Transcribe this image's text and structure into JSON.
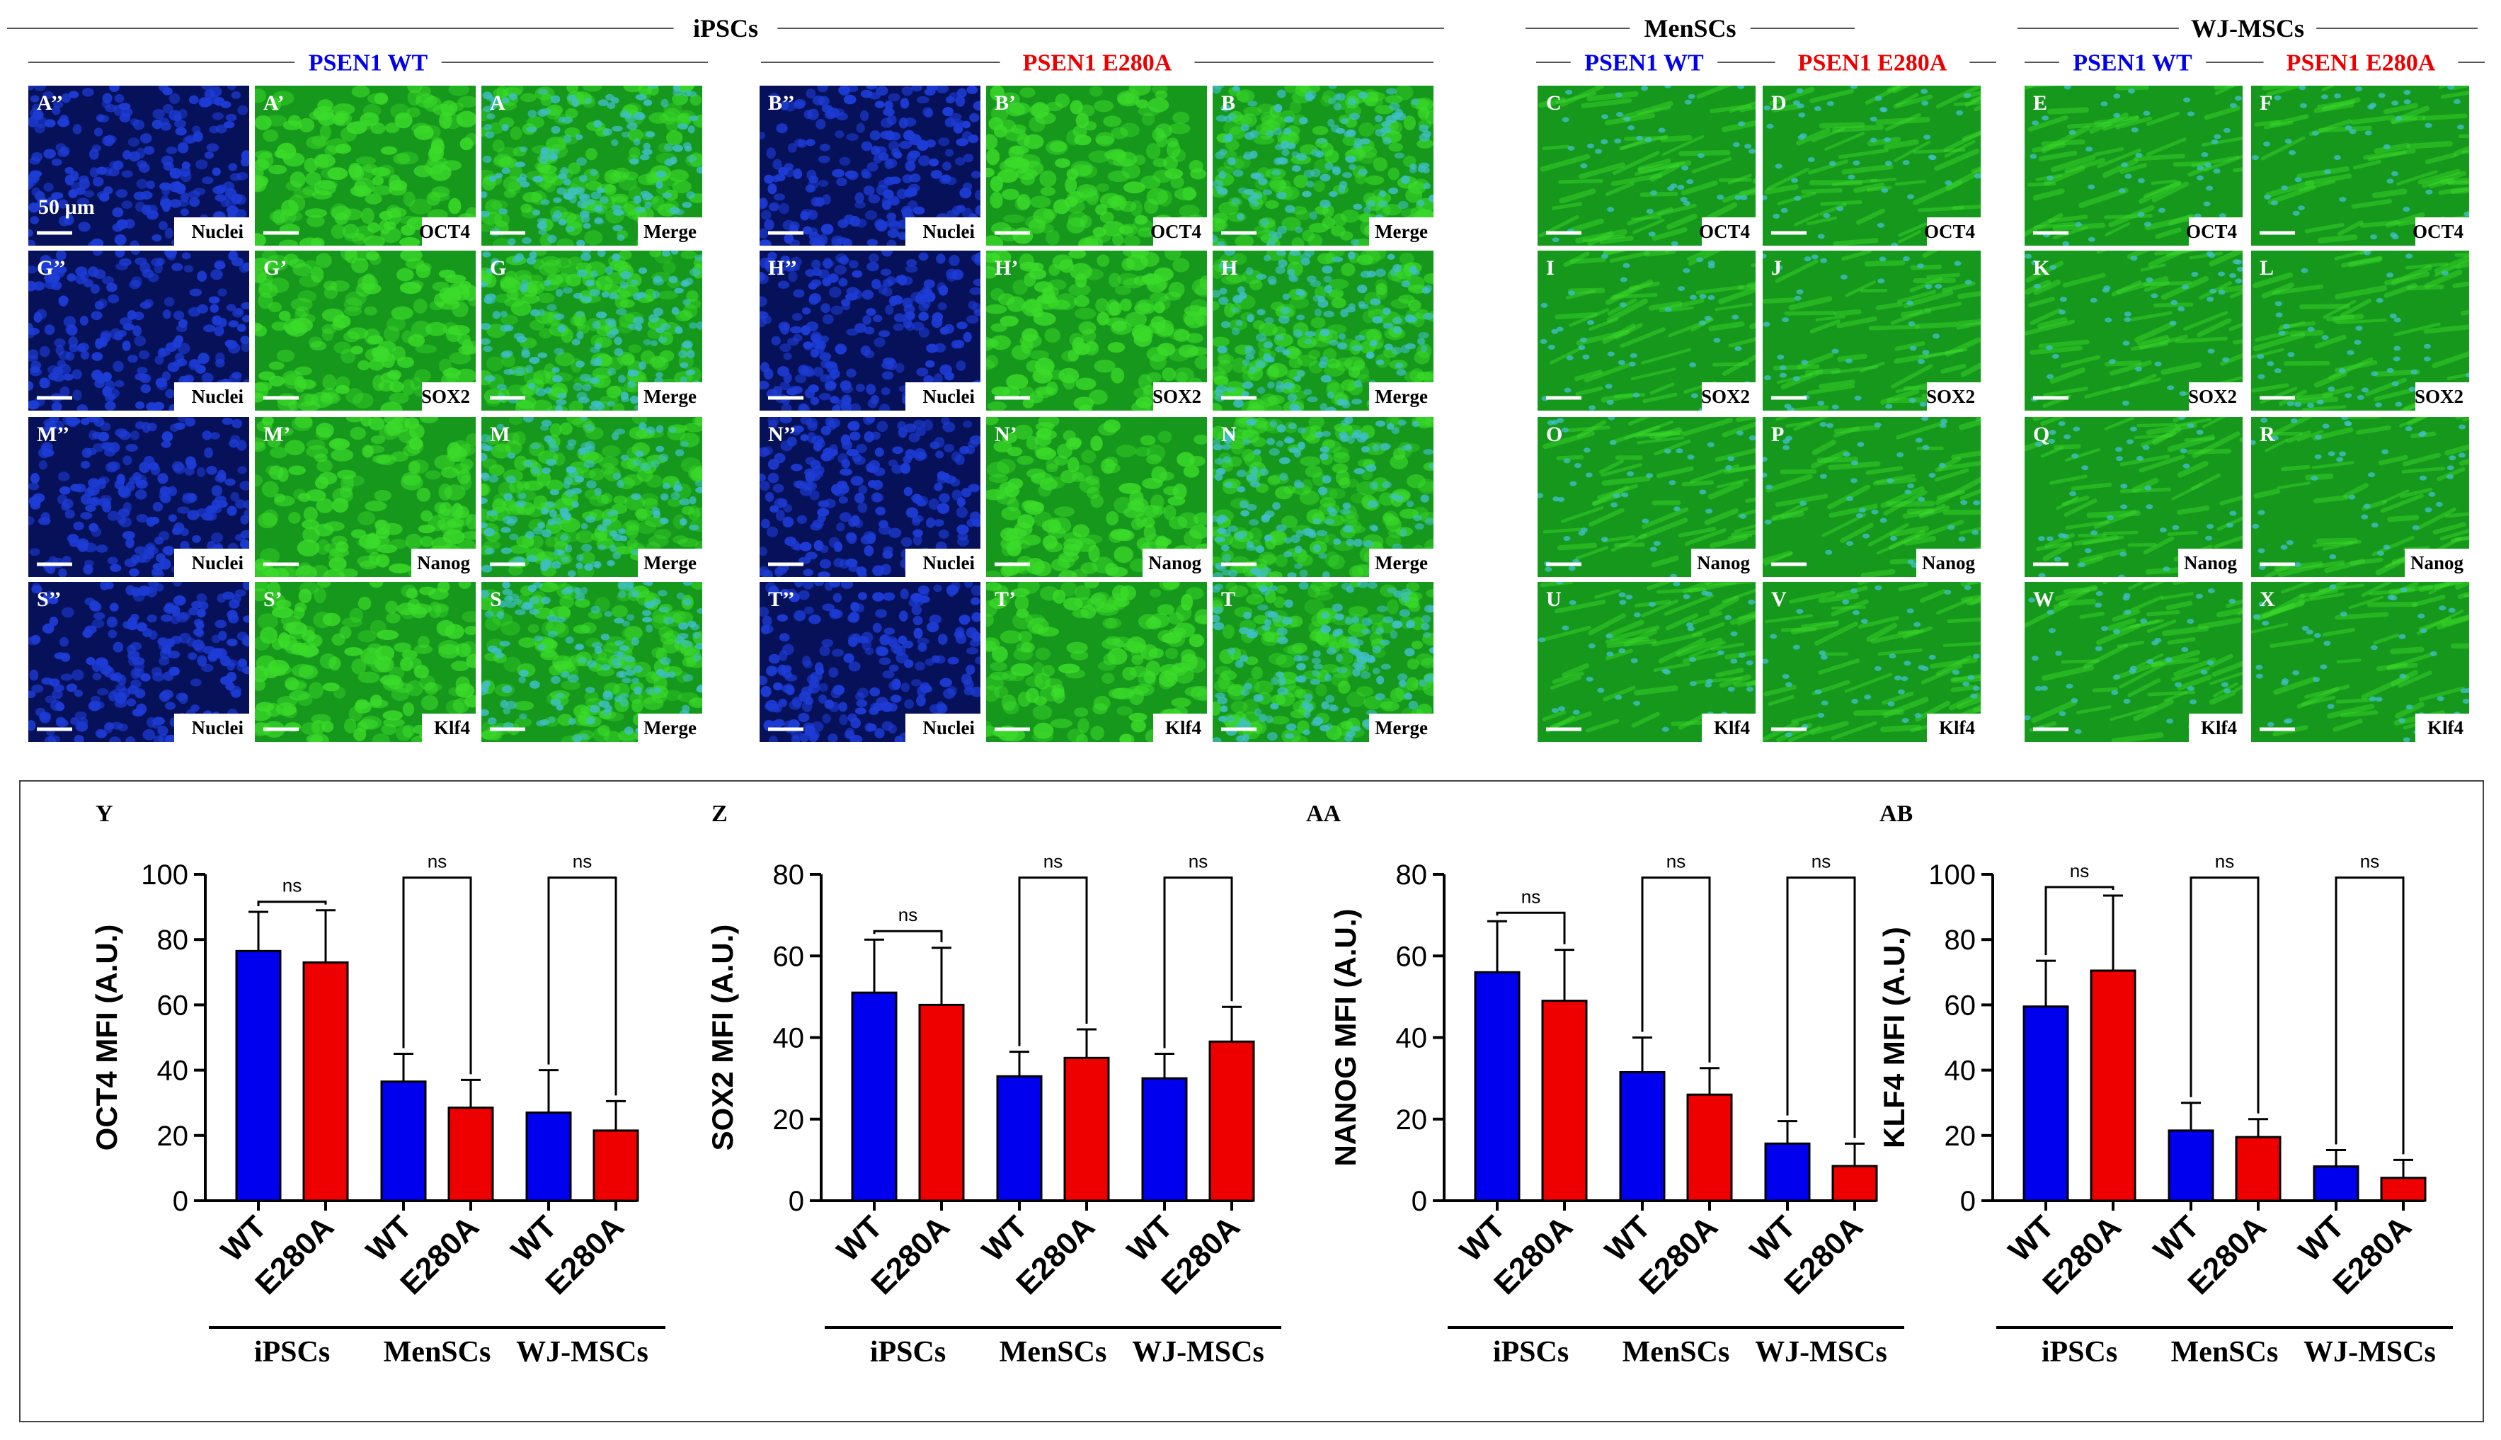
{
  "header": {
    "groups": [
      {
        "title": "iPSCs",
        "subgroups": [
          "PSEN1 WT",
          "PSEN1 E280A"
        ]
      },
      {
        "title": "MenSCs",
        "subgroups": [
          "PSEN1 WT",
          "PSEN1 E280A"
        ]
      },
      {
        "title": "WJ-MSCs",
        "subgroups": [
          "PSEN1 WT",
          "PSEN1 E280A"
        ]
      }
    ],
    "scale_bar": "50 µm"
  },
  "colors": {
    "wt": "#0000ee",
    "mutant": "#ee0000",
    "nuclei_bg": "#06115a",
    "nuclei_dot": "#1d3cd6",
    "marker_bg": "#16981c",
    "marker_bright": "#3bdc2a",
    "merge_dot": "#3fbfc7"
  },
  "ipsc_panels": [
    {
      "marker": "OCT4",
      "wt": [
        "A’’",
        "A’",
        "A"
      ],
      "mut": [
        "B’’",
        "B’",
        "B"
      ]
    },
    {
      "marker": "SOX2",
      "wt": [
        "G’’",
        "G’",
        "G"
      ],
      "mut": [
        "H’’",
        "H’",
        "H"
      ]
    },
    {
      "marker": "Nanog",
      "wt": [
        "M’’",
        "M’",
        "M"
      ],
      "mut": [
        "N’’",
        "N’",
        "N"
      ]
    },
    {
      "marker": "Klf4",
      "wt": [
        "S’’",
        "S’",
        "S"
      ],
      "mut": [
        "T’’",
        "T’",
        "T"
      ]
    }
  ],
  "ipsc_channel_labels": [
    "Nuclei",
    "Merge"
  ],
  "msc_panels": [
    {
      "marker": "OCT4",
      "letters": [
        "C",
        "D",
        "E",
        "F"
      ]
    },
    {
      "marker": "SOX2",
      "letters": [
        "I",
        "J",
        "K",
        "L"
      ]
    },
    {
      "marker": "Nanog",
      "letters": [
        "O",
        "P",
        "Q",
        "R"
      ]
    },
    {
      "marker": "Klf4",
      "letters": [
        "U",
        "V",
        "W",
        "X"
      ]
    }
  ],
  "chart_data": [
    {
      "type": "bar",
      "panel": "Y",
      "ylabel": "OCT4 MFI (A.U.)",
      "ylim": [
        0,
        100
      ],
      "yticks": [
        0,
        20,
        40,
        60,
        80,
        100
      ],
      "categories": [
        "WT",
        "E280A",
        "WT",
        "E280A",
        "WT",
        "E280A"
      ],
      "groups": [
        "iPSCs",
        "MenSCs",
        "WJ-MSCs"
      ],
      "values": [
        76.5,
        73,
        36.5,
        28.5,
        27,
        21.5
      ],
      "errors": [
        12,
        16,
        8.5,
        8.5,
        13,
        9
      ],
      "significance": [
        "ns",
        "ns",
        "ns"
      ]
    },
    {
      "type": "bar",
      "panel": "Z",
      "ylabel": "SOX2 MFI (A.U.)",
      "ylim": [
        0,
        80
      ],
      "yticks": [
        0,
        20,
        40,
        60,
        80
      ],
      "categories": [
        "WT",
        "E280A",
        "WT",
        "E280A",
        "WT",
        "E280A"
      ],
      "groups": [
        "iPSCs",
        "MenSCs",
        "WJ-MSCs"
      ],
      "values": [
        51,
        48,
        30.5,
        35,
        30,
        39
      ],
      "errors": [
        13,
        14,
        6,
        7,
        6,
        8.5
      ],
      "significance": [
        "ns",
        "ns",
        "ns"
      ]
    },
    {
      "type": "bar",
      "panel": "AA",
      "ylabel": "NANOG MFI (A.U.)",
      "ylim": [
        0,
        80
      ],
      "yticks": [
        0,
        20,
        40,
        60,
        80
      ],
      "categories": [
        "WT",
        "E280A",
        "WT",
        "E280A",
        "WT",
        "E280A"
      ],
      "groups": [
        "iPSCs",
        "MenSCs",
        "WJ-MSCs"
      ],
      "values": [
        56,
        49,
        31.5,
        26,
        14,
        8.5
      ],
      "errors": [
        12.5,
        12.5,
        8.5,
        6.5,
        5.5,
        5.5
      ],
      "significance": [
        "ns",
        "ns",
        "ns"
      ]
    },
    {
      "type": "bar",
      "panel": "AB",
      "ylabel": "KLF4 MFI (A.U.)",
      "ylim": [
        0,
        100
      ],
      "yticks": [
        0,
        20,
        40,
        60,
        80,
        100
      ],
      "categories": [
        "WT",
        "E280A",
        "WT",
        "E280A",
        "WT",
        "E280A"
      ],
      "groups": [
        "iPSCs",
        "MenSCs",
        "WJ-MSCs"
      ],
      "values": [
        59.5,
        70.5,
        21.5,
        19.5,
        10.5,
        7
      ],
      "errors": [
        14,
        23,
        8.5,
        5.5,
        5,
        5.5
      ],
      "significance": [
        "ns",
        "ns",
        "ns"
      ]
    }
  ]
}
